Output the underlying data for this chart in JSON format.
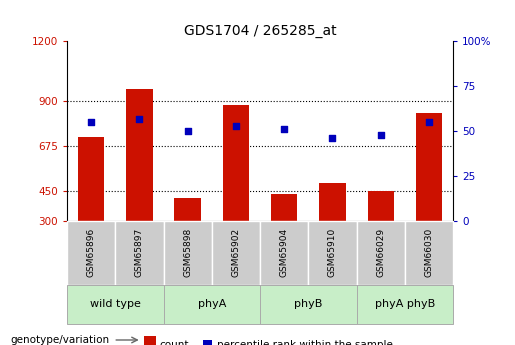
{
  "title": "GDS1704 / 265285_at",
  "samples": [
    "GSM65896",
    "GSM65897",
    "GSM65898",
    "GSM65902",
    "GSM65904",
    "GSM65910",
    "GSM66029",
    "GSM66030"
  ],
  "counts": [
    720,
    960,
    415,
    880,
    435,
    490,
    450,
    840
  ],
  "percentiles": [
    55,
    57,
    50,
    53,
    51,
    46,
    48,
    55
  ],
  "group_configs": [
    {
      "label": "wild type",
      "indices": [
        0,
        1
      ],
      "color": "#c8eec8"
    },
    {
      "label": "phyA",
      "indices": [
        2,
        3
      ],
      "color": "#c8eec8"
    },
    {
      "label": "phyB",
      "indices": [
        4,
        5
      ],
      "color": "#c8eec8"
    },
    {
      "label": "phyA phyB",
      "indices": [
        6,
        7
      ],
      "color": "#c8eec8"
    }
  ],
  "ymin": 300,
  "ymax": 1200,
  "yticks": [
    300,
    450,
    675,
    900,
    1200
  ],
  "ytick_labels": [
    "300",
    "450",
    "675",
    "900",
    "1200"
  ],
  "y2ticks": [
    0,
    25,
    50,
    75,
    100
  ],
  "y2tick_labels": [
    "0",
    "25",
    "50",
    "75",
    "100%"
  ],
  "bar_color": "#cc1100",
  "dot_color": "#0000bb",
  "bar_width": 0.55,
  "legend_count_label": "count",
  "legend_pct_label": "percentile rank within the sample",
  "genotype_label": "genotype/variation",
  "background_color": "#ffffff",
  "grid_color": "#000000",
  "sample_box_color": "#cccccc",
  "title_fontsize": 10,
  "tick_fontsize": 7.5,
  "sample_fontsize": 6.5,
  "group_fontsize": 8,
  "legend_fontsize": 7.5,
  "genotype_fontsize": 7.5
}
